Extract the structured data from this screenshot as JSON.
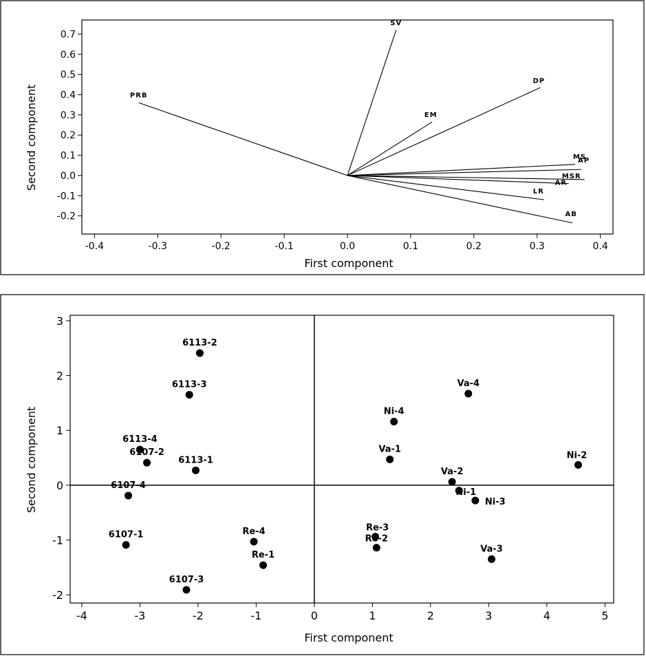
{
  "chart_data": [
    {
      "type": "biplot-loadings",
      "xlabel": "First component",
      "ylabel": "Second component",
      "xlim": [
        -0.42,
        0.42
      ],
      "ylim": [
        -0.29,
        0.77
      ],
      "xticks": [
        -0.4,
        -0.3,
        -0.2,
        -0.1,
        0.0,
        0.1,
        0.2,
        0.3,
        0.4
      ],
      "xtick_labels": [
        "-0.4",
        "-0.3",
        "-0.2",
        "-0.1",
        "0.0",
        "0.1",
        "0.2",
        "0.3",
        "0.4"
      ],
      "yticks": [
        -0.2,
        -0.1,
        0.0,
        0.1,
        0.2,
        0.3,
        0.4,
        0.5,
        0.6,
        0.7
      ],
      "ytick_labels": [
        "-0.2",
        "-0.1",
        "0.0",
        "0.1",
        "0.2",
        "0.3",
        "0.4",
        "0.5",
        "0.6",
        "0.7"
      ],
      "vectors": [
        {
          "name": "SV",
          "x": 0.077,
          "y": 0.72
        },
        {
          "name": "EM",
          "x": 0.134,
          "y": 0.265
        },
        {
          "name": "DP",
          "x": 0.305,
          "y": 0.435
        },
        {
          "name": "PRB",
          "x": -0.33,
          "y": 0.36
        },
        {
          "name": "MS",
          "x": 0.36,
          "y": 0.055
        },
        {
          "name": "AP",
          "x": 0.37,
          "y": 0.03
        },
        {
          "name": "MSR",
          "x": 0.375,
          "y": -0.02
        },
        {
          "name": "AR",
          "x": 0.35,
          "y": -0.04
        },
        {
          "name": "LR",
          "x": 0.311,
          "y": -0.12
        },
        {
          "name": "AB",
          "x": 0.356,
          "y": -0.235
        }
      ]
    },
    {
      "type": "scatter",
      "xlabel": "First component",
      "ylabel": "Second component",
      "xlim": [
        -4.2,
        5.15
      ],
      "ylim": [
        -2.15,
        3.1
      ],
      "xticks": [
        -4,
        -3,
        -2,
        -1,
        0,
        1,
        2,
        3,
        4,
        5
      ],
      "xtick_labels": [
        "-4",
        "-3",
        "-2",
        "-1",
        "0",
        "1",
        "2",
        "3",
        "4",
        "5"
      ],
      "yticks": [
        -2,
        -1,
        0,
        1,
        2,
        3
      ],
      "ytick_labels": [
        "-2",
        "-1",
        "0",
        "1",
        "2",
        "3"
      ],
      "reference_lines": {
        "x": 0,
        "y": 0
      },
      "points": [
        {
          "label": "6113-2",
          "x": -1.97,
          "y": 2.41
        },
        {
          "label": "6113-3",
          "x": -2.15,
          "y": 1.65
        },
        {
          "label": "6113-4",
          "x": -3.0,
          "y": 0.65
        },
        {
          "label": "6107-2",
          "x": -2.88,
          "y": 0.41
        },
        {
          "label": "6113-1",
          "x": -2.04,
          "y": 0.27
        },
        {
          "label": "6107-4",
          "x": -3.2,
          "y": -0.19
        },
        {
          "label": "6107-1",
          "x": -3.24,
          "y": -1.09
        },
        {
          "label": "6107-3",
          "x": -2.2,
          "y": -1.91
        },
        {
          "label": "Re-4",
          "x": -1.04,
          "y": -1.03
        },
        {
          "label": "Re-1",
          "x": -0.88,
          "y": -1.46
        },
        {
          "label": "Va-4",
          "x": 2.65,
          "y": 1.67
        },
        {
          "label": "Ni-4",
          "x": 1.37,
          "y": 1.16
        },
        {
          "label": "Va-1",
          "x": 1.3,
          "y": 0.47
        },
        {
          "label": "Ni-2",
          "x": 4.54,
          "y": 0.37
        },
        {
          "label": "Va-2",
          "x": 2.37,
          "y": 0.06
        },
        {
          "label": "Ni-1",
          "x": 2.49,
          "y": -0.1
        },
        {
          "label": "Ni-3",
          "x": 2.77,
          "y": -0.28
        },
        {
          "label": "Re-3",
          "x": 1.05,
          "y": -0.94
        },
        {
          "label": "Re-2",
          "x": 1.07,
          "y": -1.14
        },
        {
          "label": "Va-3",
          "x": 3.05,
          "y": -1.35
        }
      ]
    }
  ]
}
